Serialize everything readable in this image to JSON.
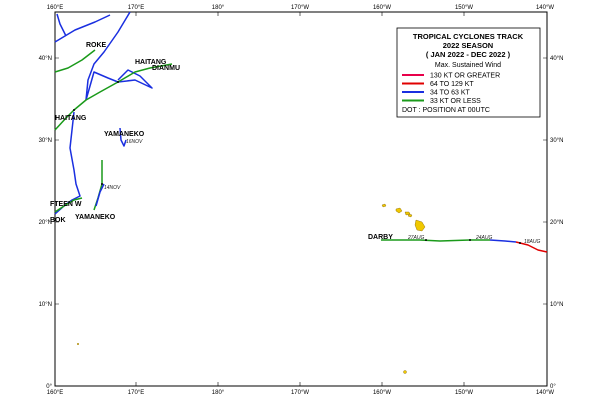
{
  "map": {
    "lon_labels": [
      "160°E",
      "170°E",
      "180°",
      "170°W",
      "160°W",
      "150°W",
      "140°W"
    ],
    "lat_labels": [
      "0°",
      "10°N",
      "20°N",
      "30°N",
      "40°N"
    ],
    "legend": {
      "title": [
        "TROPICAL CYCLONES TRACK",
        "2022 SEASON",
        "( JAN 2022  -  DEC 2022 )"
      ],
      "subtitle": "Max. Sustained Wind",
      "entries": [
        {
          "label": "130 KT OR GREATER",
          "color": "#e8004a"
        },
        {
          "label": "64 TO 129 KT",
          "color": "#e00000"
        },
        {
          "label": "34 TO 63 KT",
          "color": "#1a2fe0"
        },
        {
          "label": "33 KT OR LESS",
          "color": "#1a9a1a"
        }
      ],
      "note": "DOT : POSITION AT 00UTC"
    },
    "storms": [
      "ROKE",
      "HAITANG",
      "DIANMU",
      "HAITANG",
      "YAMANEKO",
      "FTEEN W",
      "BOK",
      "YAMANEKO",
      "DARBY"
    ],
    "track_labels": [
      "16NOV",
      "14NOV",
      "27AUG",
      "24AUG",
      "18AUG"
    ]
  }
}
